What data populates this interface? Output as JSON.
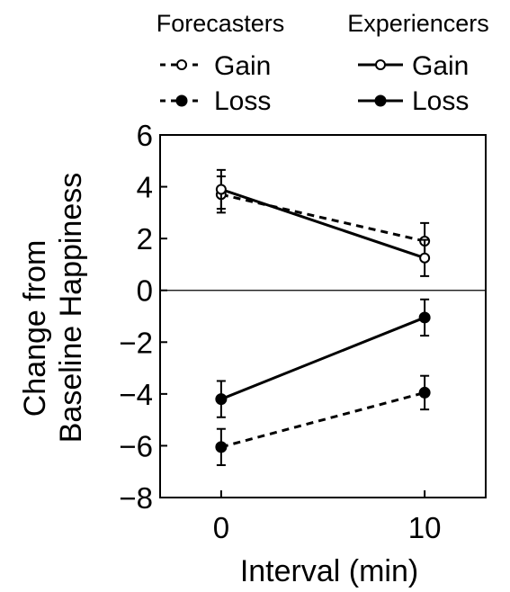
{
  "chart_data": {
    "type": "line",
    "title": "",
    "xlabel": "Interval (min)",
    "ylabel_lines": [
      "Change from",
      "Baseline Happiness"
    ],
    "x": [
      0,
      10
    ],
    "x_ticks": [
      "0",
      "10"
    ],
    "xlim": [
      -3,
      13
    ],
    "ylim": [
      -8,
      6
    ],
    "y_ticks": [
      6,
      4,
      2,
      0,
      -2,
      -4,
      -6,
      -8
    ],
    "y_tick_labels": [
      "6",
      "4",
      "2",
      "0",
      "−2",
      "−4",
      "−6",
      "−8"
    ],
    "zero_line": true,
    "grid": false,
    "legend": {
      "placement": "top",
      "groups": [
        {
          "heading": "Forecasters",
          "items": [
            "Gain",
            "Loss"
          ]
        },
        {
          "heading": "Experiencers",
          "items": [
            "Gain",
            "Loss"
          ]
        }
      ]
    },
    "series": [
      {
        "name": "Forecasters Gain",
        "group": "Forecasters",
        "outcome": "Gain",
        "line": "dashed",
        "marker": "open",
        "values": [
          3.7,
          1.9
        ],
        "errors": [
          0.7,
          0.7
        ]
      },
      {
        "name": "Forecasters Loss",
        "group": "Forecasters",
        "outcome": "Loss",
        "line": "dashed",
        "marker": "filled",
        "values": [
          -6.05,
          -3.95
        ],
        "errors": [
          0.7,
          0.65
        ]
      },
      {
        "name": "Experiencers Gain",
        "group": "Experiencers",
        "outcome": "Gain",
        "line": "solid",
        "marker": "open",
        "values": [
          3.9,
          1.25
        ],
        "errors": [
          0.75,
          0.7
        ]
      },
      {
        "name": "Experiencers Loss",
        "group": "Experiencers",
        "outcome": "Loss",
        "line": "solid",
        "marker": "filled",
        "values": [
          -4.2,
          -1.05
        ],
        "errors": [
          0.7,
          0.7
        ]
      }
    ]
  }
}
